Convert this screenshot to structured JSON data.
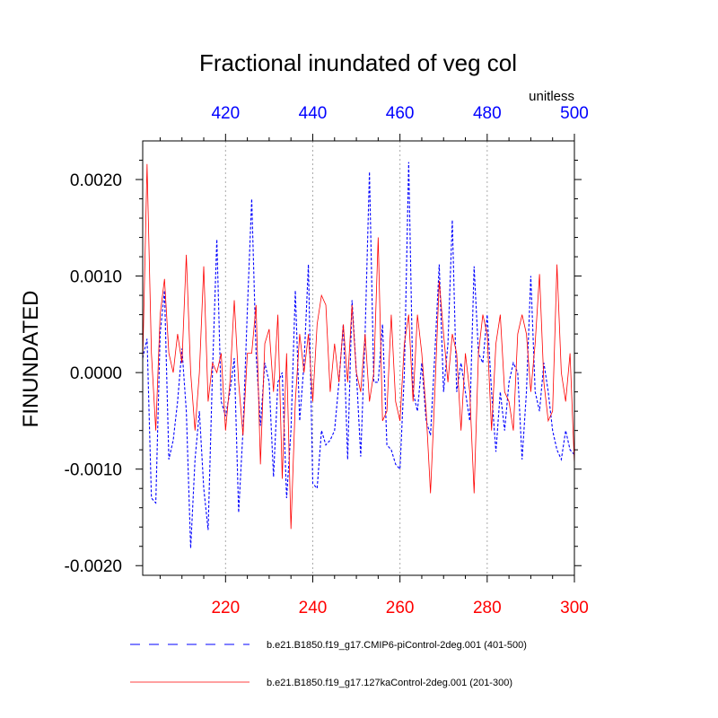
{
  "colors": {
    "series1": "#0000ff",
    "series2": "#ff0000",
    "axis": "#000000",
    "grid": "#aaaaaa"
  },
  "chart_data": {
    "type": "line",
    "title": "Fractional inundated of veg col",
    "units": "unitless",
    "ylabel": "FINUNDATED",
    "ylim": [
      -0.0021,
      0.0024
    ],
    "yticks": [
      0.002,
      0.001,
      0.0,
      -0.001,
      -0.002
    ],
    "yticks_labels": [
      "0.0020",
      "0.0010",
      "0.0000",
      "-0.0010",
      "-0.0020"
    ],
    "bottom_axis": {
      "xlim": [
        201,
        300
      ],
      "ticks": [
        220,
        240,
        260,
        280,
        300
      ],
      "tick_labels": [
        "220",
        "240",
        "260",
        "280",
        "300"
      ],
      "color": "#ff0000"
    },
    "top_axis": {
      "xlim": [
        401,
        500
      ],
      "ticks": [
        420,
        440,
        460,
        480,
        500
      ],
      "tick_labels": [
        "420",
        "440",
        "460",
        "480",
        "500"
      ],
      "color": "#0000ff"
    },
    "series": [
      {
        "name": "b.e21.B1850.f19_g17.CMIP6-piControl-2deg.001 (401-500)",
        "axis": "top",
        "style": "dashed",
        "color": "#0000ff",
        "x_start": 401,
        "values": [
          0.00015,
          0.00035,
          -0.0013,
          -0.00135,
          0.0004,
          0.00085,
          -0.0009,
          -0.0007,
          -0.0003,
          0.00025,
          -0.0004,
          -0.00182,
          -0.0009,
          -0.0004,
          -0.0012,
          -0.00163,
          0.0,
          0.00138,
          -0.0003,
          -0.00045,
          -0.0002,
          0.00015,
          -0.00145,
          -0.0006,
          0.00065,
          0.0018,
          0.0002,
          -0.00055,
          0.0001,
          -0.0001,
          -0.00108,
          -0.0001,
          0.0,
          -0.0013,
          -0.0006,
          0.00085,
          -0.0005,
          0.0001,
          0.00112,
          -0.00115,
          -0.0012,
          -0.0006,
          -0.00075,
          -0.0007,
          -0.0006,
          -0.0001,
          0.0005,
          -0.0009,
          0.00075,
          0.0,
          -0.00087,
          0.0004,
          0.00208,
          -0.0001,
          -0.0001,
          0.0005,
          -0.00075,
          -0.0008,
          -0.00095,
          -0.001,
          0.0,
          0.00218,
          -0.0002,
          -0.0004,
          0.0001,
          -0.0005,
          -0.00065,
          0.0002,
          0.00112,
          -0.0002,
          0.0003,
          0.00158,
          -0.0002,
          0.0001,
          -0.0002,
          -0.0005,
          0.0011,
          0.0002,
          0.0001,
          0.0006,
          -0.0002,
          -0.00082,
          -0.0002,
          -0.0006,
          -0.0001,
          0.0001,
          0.0,
          -0.0009,
          -0.0002,
          0.001,
          -0.0002,
          -0.0004,
          0.0001,
          -0.0002,
          -0.0006,
          -0.0008,
          -0.0009,
          -0.0006,
          -0.0008,
          -0.00085
        ]
      },
      {
        "name": "b.e21.B1850.f19_g17.127kaControl-2deg.001 (201-300)",
        "axis": "bottom",
        "style": "solid",
        "color": "#ff0000",
        "x_start": 201,
        "values": [
          0.0001,
          0.00216,
          0.0002,
          -0.0006,
          0.0006,
          0.00097,
          0.0002,
          0.0,
          0.0004,
          0.0001,
          0.00122,
          0.0,
          -0.0006,
          0.0,
          0.0011,
          -0.0003,
          0.0001,
          0.0,
          0.0002,
          -0.0006,
          -0.0001,
          0.00075,
          -0.0001,
          -0.00065,
          0.0002,
          0.0002,
          0.0007,
          -0.00095,
          0.0003,
          0.00045,
          -0.0002,
          0.0006,
          -0.0011,
          0.0002,
          -0.00162,
          -0.0003,
          0.0004,
          0.0,
          0.0004,
          -0.0003,
          0.0005,
          0.0008,
          0.0007,
          -0.0002,
          0.0003,
          -0.0001,
          0.0005,
          -0.0001,
          0.0007,
          0.0,
          -0.0002,
          0.0004,
          -0.0003,
          0.0,
          0.0014,
          -0.0005,
          -0.0004,
          0.0006,
          -0.0003,
          -0.0005,
          0.0003,
          0.0006,
          -0.0003,
          0.0006,
          0.0002,
          -0.0004,
          -0.00125,
          -0.0002,
          0.00095,
          0.0004,
          -0.0001,
          0.0004,
          0.0002,
          -0.0006,
          0.0002,
          -0.0002,
          -0.00125,
          0.0002,
          0.0006,
          0.0004,
          -0.0006,
          0.0003,
          0.0006,
          -0.0002,
          -0.0003,
          -0.0006,
          0.0004,
          0.0006,
          0.0004,
          -0.0002,
          0.0003,
          0.00102,
          -0.0001,
          -0.0005,
          -0.0004,
          0.00112,
          0.0,
          -0.0003,
          0.0002,
          -0.00095
        ]
      }
    ]
  }
}
